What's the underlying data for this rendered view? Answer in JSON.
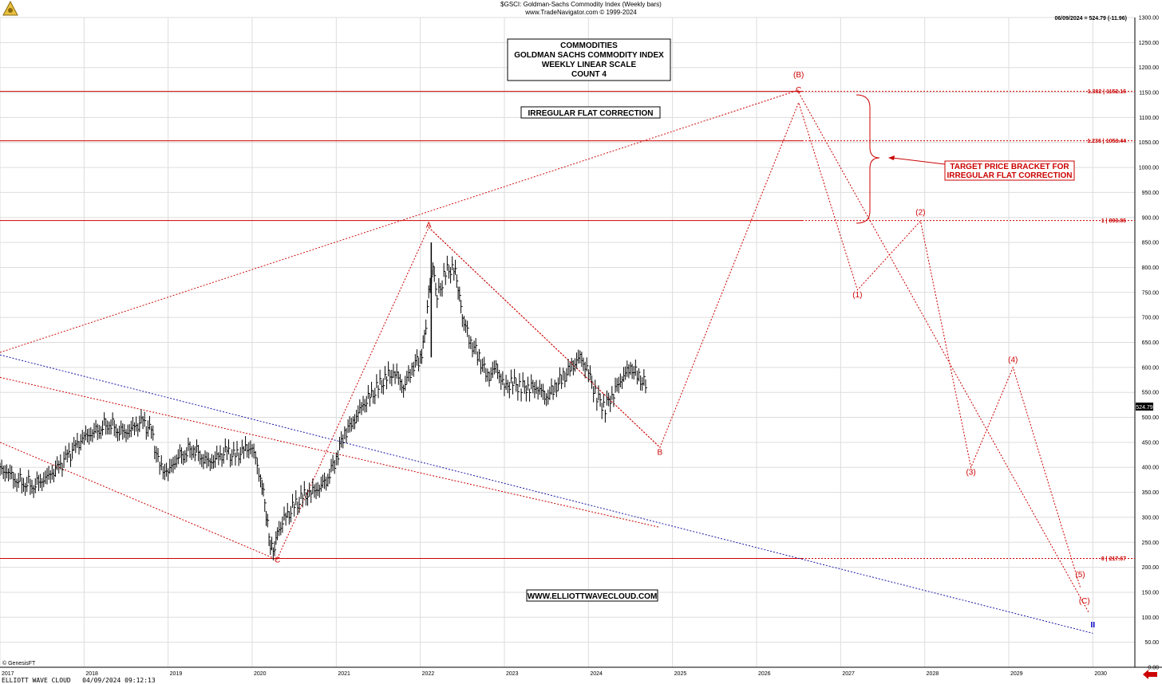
{
  "header": {
    "title": "$GSCI:  Goldman-Sachs Commodity Index  (Weekly bars)",
    "subtitle": "www.TradeNavigator.com © 1999-2024"
  },
  "quote": "06/09/2024 = 524.79 (-11.96)",
  "last_price_tag": "524.79",
  "title_box": {
    "lines": [
      "COMMODITIES",
      "GOLDMAN SACHS COMMODITY INDEX",
      "WEEKLY LINEAR SCALE",
      "COUNT 4"
    ]
  },
  "pattern_box": "IRREGULAR FLAT CORRECTION",
  "target_box": {
    "lines": [
      "TARGET PRICE BRACKET FOR",
      "IRREGULAR FLAT CORRECTION"
    ]
  },
  "website_box": "WWW.ELLIOTTWAVECLOUD.COM",
  "copyright": "© GenesisFT",
  "footer": "ELLIOTT WAVE CLOUD   04/09/2024 09:12:13",
  "colors": {
    "price_bars": "#000000",
    "fib_lines": "#cc0000",
    "wave_lines": "#cc0000",
    "trend_line_blue": "#1a1aaa",
    "grid": "#dddddd",
    "labels": "#cc0000",
    "blue_marker": "#0000cc"
  },
  "chart_data": {
    "type": "bar",
    "title": "$GSCI:  Goldman-Sachs Commodity Index  (Weekly bars)",
    "x_axis": {
      "tick_labels": [
        "2017",
        "2018",
        "2019",
        "2020",
        "2021",
        "2022",
        "2023",
        "2024",
        "2025",
        "2026",
        "2027",
        "2028",
        "2029",
        "2030"
      ],
      "range": [
        2017.0,
        2030.5
      ]
    },
    "y_axis": {
      "tick_labels": [
        "0.00",
        "50.00",
        "100.00",
        "150.00",
        "200.00",
        "250.00",
        "300.00",
        "350.00",
        "400.00",
        "450.00",
        "500.00",
        "550.00",
        "600.00",
        "650.00",
        "700.00",
        "750.00",
        "800.00",
        "850.00",
        "900.00",
        "950.00",
        "1000.00",
        "1050.00",
        "1100.00",
        "1150.00",
        "1200.00",
        "1250.00",
        "1300.00"
      ],
      "range": [
        0,
        1300
      ],
      "scale": "linear",
      "side": "right"
    },
    "grid": true,
    "price_series": {
      "name": "$GSCI",
      "x": [
        2017.0,
        2017.1,
        2017.2,
        2017.3,
        2017.4,
        2017.5,
        2017.6,
        2017.7,
        2017.8,
        2017.9,
        2018.0,
        2018.1,
        2018.2,
        2018.3,
        2018.4,
        2018.5,
        2018.6,
        2018.7,
        2018.8,
        2018.9,
        2019.0,
        2019.1,
        2019.2,
        2019.3,
        2019.4,
        2019.5,
        2019.6,
        2019.7,
        2019.8,
        2019.9,
        2020.0,
        2020.1,
        2020.15,
        2020.2,
        2020.25,
        2020.3,
        2020.4,
        2020.5,
        2020.6,
        2020.7,
        2020.8,
        2020.9,
        2021.0,
        2021.1,
        2021.2,
        2021.3,
        2021.4,
        2021.5,
        2021.6,
        2021.7,
        2021.8,
        2021.9,
        2022.0,
        2022.05,
        2022.1,
        2022.15,
        2022.2,
        2022.3,
        2022.4,
        2022.45,
        2022.5,
        2022.6,
        2022.7,
        2022.8,
        2022.9,
        2023.0,
        2023.1,
        2023.2,
        2023.3,
        2023.4,
        2023.5,
        2023.6,
        2023.7,
        2023.8,
        2023.9,
        2024.0,
        2024.1,
        2024.2,
        2024.3,
        2024.4,
        2024.5,
        2024.6,
        2024.7
      ],
      "close": [
        395,
        390,
        375,
        370,
        365,
        375,
        385,
        400,
        420,
        440,
        460,
        470,
        480,
        490,
        475,
        470,
        480,
        490,
        470,
        400,
        390,
        420,
        430,
        440,
        420,
        410,
        420,
        430,
        420,
        435,
        440,
        380,
        330,
        260,
        230,
        270,
        300,
        320,
        340,
        350,
        360,
        380,
        420,
        470,
        490,
        520,
        540,
        560,
        580,
        590,
        560,
        600,
        620,
        660,
        750,
        800,
        740,
        790,
        800,
        760,
        700,
        650,
        620,
        580,
        600,
        560,
        570,
        560,
        560,
        560,
        540,
        560,
        580,
        600,
        620,
        590,
        540,
        520,
        550,
        580,
        600,
        580,
        560
      ],
      "last": 524.79
    },
    "fib_levels": [
      {
        "label": "1.382 | 1152.16",
        "value": 1152.16
      },
      {
        "label": "1.236 | 1053.44",
        "value": 1053.44
      },
      {
        "label": "1 | 893.86",
        "value": 893.86
      },
      {
        "label": "0 | 217.67",
        "value": 217.67
      }
    ],
    "wave_labels": [
      {
        "text": "C",
        "x": 2020.3,
        "y": 210
      },
      {
        "text": "A",
        "x": 2022.1,
        "y": 880
      },
      {
        "text": "B",
        "x": 2024.85,
        "y": 425
      },
      {
        "text": "(B)",
        "x": 2026.5,
        "y": 1180
      },
      {
        "text": "C",
        "x": 2026.5,
        "y": 1150
      },
      {
        "text": "(1)",
        "x": 2027.2,
        "y": 740
      },
      {
        "text": "(2)",
        "x": 2027.95,
        "y": 905
      },
      {
        "text": "(3)",
        "x": 2028.55,
        "y": 385
      },
      {
        "text": "(4)",
        "x": 2029.05,
        "y": 610
      },
      {
        "text": "(5)",
        "x": 2029.85,
        "y": 180
      },
      {
        "text": "(C)",
        "x": 2029.9,
        "y": 128
      },
      {
        "text": "II",
        "x": 2030.0,
        "y": 80
      }
    ],
    "wave_path": [
      {
        "x": 2020.3,
        "y": 217.67
      },
      {
        "x": 2022.1,
        "y": 880
      },
      {
        "x": 2024.85,
        "y": 440
      },
      {
        "x": 2026.5,
        "y": 1130
      },
      {
        "x": 2027.2,
        "y": 755
      },
      {
        "x": 2027.95,
        "y": 893
      },
      {
        "x": 2028.55,
        "y": 400
      },
      {
        "x": 2029.05,
        "y": 600
      },
      {
        "x": 2029.85,
        "y": 160
      }
    ]
  }
}
